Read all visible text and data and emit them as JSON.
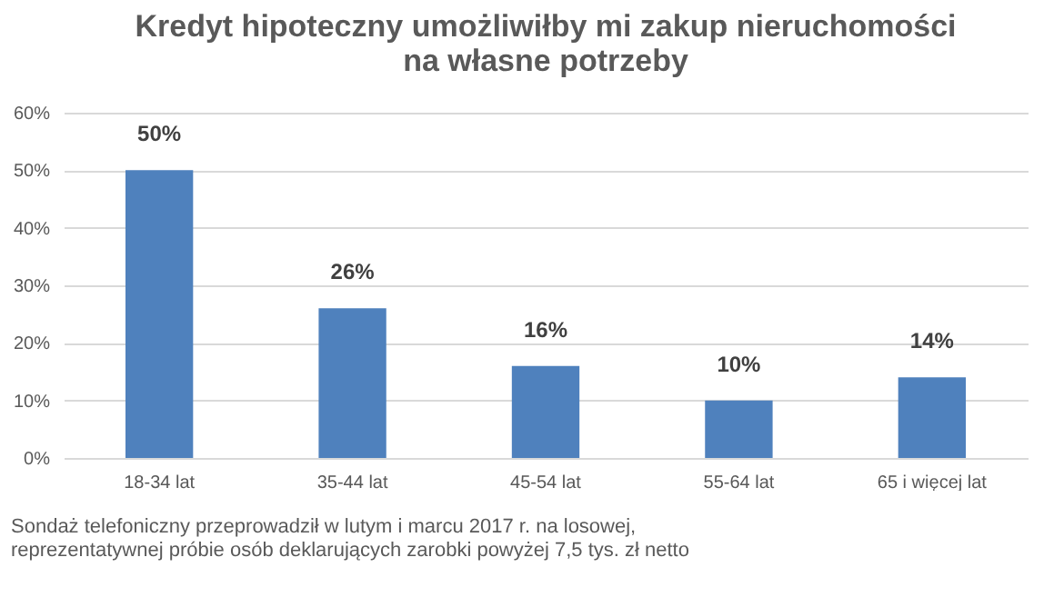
{
  "chart_data": {
    "type": "bar",
    "title": "Kredyt hipoteczny umożliwiłby mi zakup nieruchomości\nna własne potrzeby",
    "categories": [
      "18-34 lat",
      "35-44 lat",
      "45-54 lat",
      "55-64 lat",
      "65 i więcej lat"
    ],
    "values": [
      50,
      26,
      16,
      10,
      14
    ],
    "value_labels": [
      "50%",
      "26%",
      "16%",
      "10%",
      "14%"
    ],
    "color": "#4f81bd",
    "ylim": [
      0,
      60
    ],
    "yticks": [
      {
        "value": 0,
        "label": "0%"
      },
      {
        "value": 10,
        "label": "10%"
      },
      {
        "value": 20,
        "label": "20%"
      },
      {
        "value": 30,
        "label": "30%"
      },
      {
        "value": 40,
        "label": "40%"
      },
      {
        "value": 50,
        "label": "50%"
      },
      {
        "value": 60,
        "label": "60%"
      }
    ],
    "grid": "y",
    "annotations": [
      "Sondaż telefoniczny przeprowadził w lutym i marcu 2017 r. na losowej, reprezentatywnej próbie osób deklarujących zarobki powyżej 7,5 tys. zł netto"
    ]
  }
}
